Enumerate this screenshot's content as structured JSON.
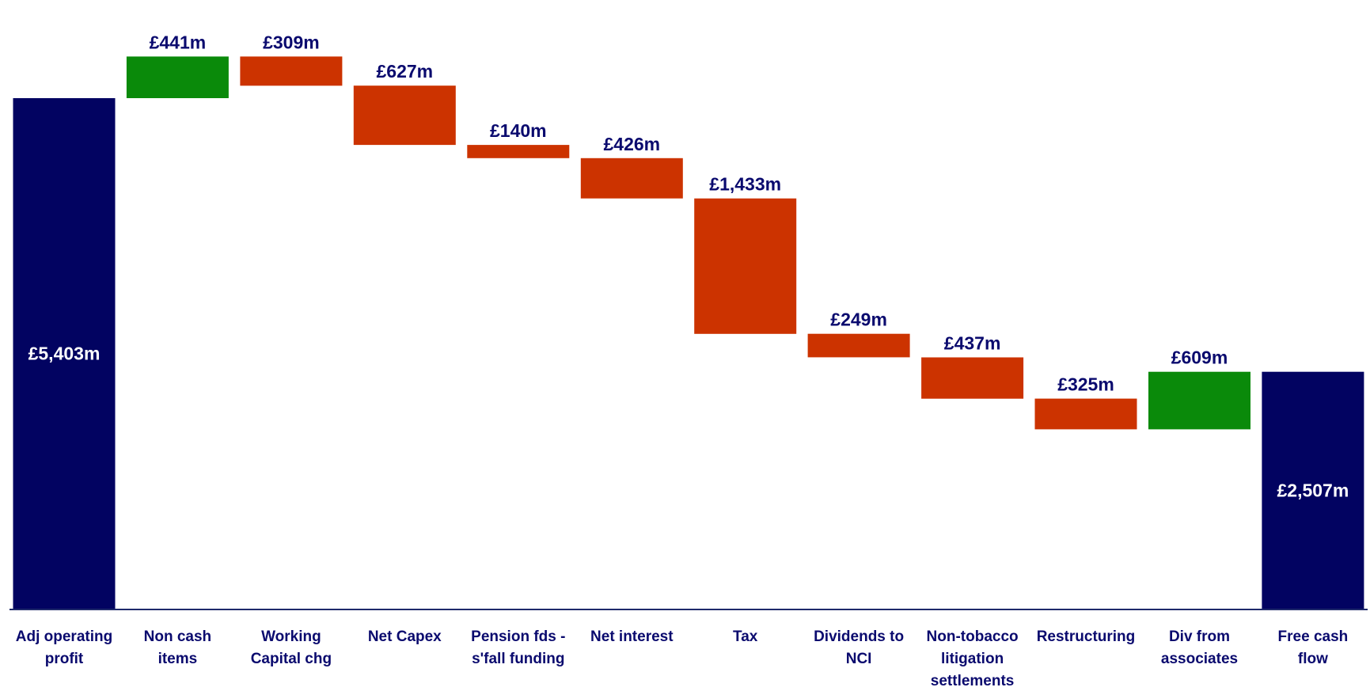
{
  "chart_data": {
    "type": "bar",
    "subtype": "waterfall",
    "unit": "£m",
    "colors": {
      "total": "#020361",
      "increase": "#0a8a0a",
      "decrease": "#cc3300",
      "label_dark": "#0a0a6e",
      "label_light": "#ffffff",
      "axis": "#1f2a6b"
    },
    "categories": [
      "Adj operating profit",
      "Non cash items",
      "Working Capital chg",
      "Net Capex",
      "Pension fds - s'fall funding",
      "Net interest",
      "Tax",
      "Dividends to NCI",
      "Non-tobacco litigation settlements",
      "Restructuring",
      "Div from associates",
      "Free cash flow"
    ],
    "category_lines": [
      [
        "Adj operating",
        "profit"
      ],
      [
        "Non cash",
        "items"
      ],
      [
        "Working",
        "Capital chg"
      ],
      [
        "Net Capex"
      ],
      [
        "Pension fds -",
        "s'fall funding"
      ],
      [
        "Net interest"
      ],
      [
        "Tax"
      ],
      [
        "Dividends to",
        "NCI"
      ],
      [
        "Non-tobacco",
        "litigation",
        "settlements"
      ],
      [
        "Restructuring"
      ],
      [
        "Div from",
        "associates"
      ],
      [
        "Free cash",
        "flow"
      ]
    ],
    "values": [
      5403,
      441,
      -309,
      -627,
      -140,
      -426,
      -1433,
      -249,
      -437,
      -325,
      609,
      2507
    ],
    "kinds": [
      "total",
      "increase",
      "decrease",
      "decrease",
      "decrease",
      "decrease",
      "decrease",
      "decrease",
      "decrease",
      "decrease",
      "increase",
      "total"
    ],
    "labels": [
      "£5,403m",
      "£441m",
      "£309m",
      "£627m",
      "£140m",
      "£426m",
      "£1,433m",
      "£249m",
      "£437m",
      "£325m",
      "£609m",
      "£2,507m"
    ],
    "label_positions": [
      "inside",
      "above",
      "above",
      "above",
      "above",
      "above",
      "above",
      "above",
      "above",
      "above",
      "above",
      "inside"
    ],
    "title": "",
    "xlabel": "",
    "ylabel": "",
    "grid": false,
    "legend": "none"
  }
}
